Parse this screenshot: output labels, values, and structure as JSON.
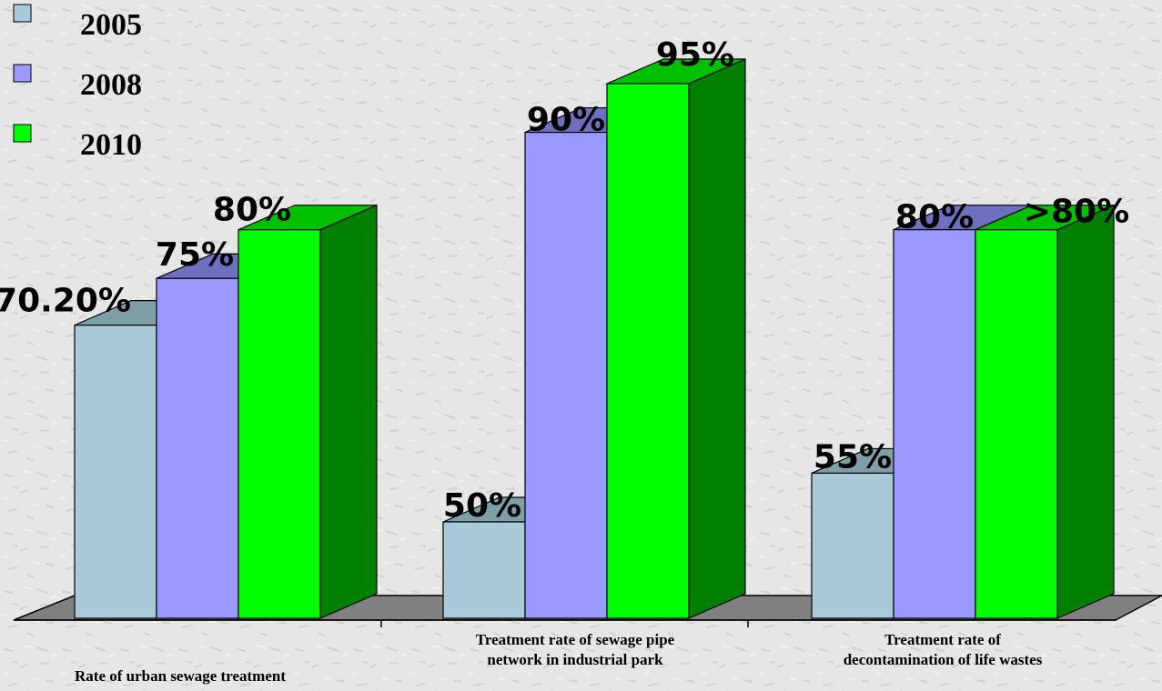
{
  "chart_data": {
    "type": "bar",
    "categories": [
      "Rate of urban sewage treatment",
      "Treatment rate of sewage pipe network in industrial park",
      "Treatment rate of decontamination of life wastes"
    ],
    "category_lines": [
      [
        "Rate of urban sewage treatment"
      ],
      [
        "Treatment rate of sewage pipe",
        "network in industrial park"
      ],
      [
        "Treatment rate of",
        "decontamination of life wastes"
      ]
    ],
    "series": [
      {
        "name": "2005",
        "values": [
          70.2,
          50,
          55
        ],
        "labels": [
          "70.20%",
          "50%",
          "55%"
        ],
        "color": "#a8cad8"
      },
      {
        "name": "2008",
        "values": [
          75,
          90,
          80
        ],
        "labels": [
          "75%",
          "90%",
          "80%"
        ],
        "color": "#9999ff"
      },
      {
        "name": "2010",
        "values": [
          80,
          95,
          80
        ],
        "labels": [
          "80%",
          "95%",
          ">80%"
        ],
        "color": "#00ff00"
      }
    ],
    "ylim": [
      0,
      100
    ],
    "grid": false,
    "legend_position": "top-left",
    "three_d": true
  }
}
